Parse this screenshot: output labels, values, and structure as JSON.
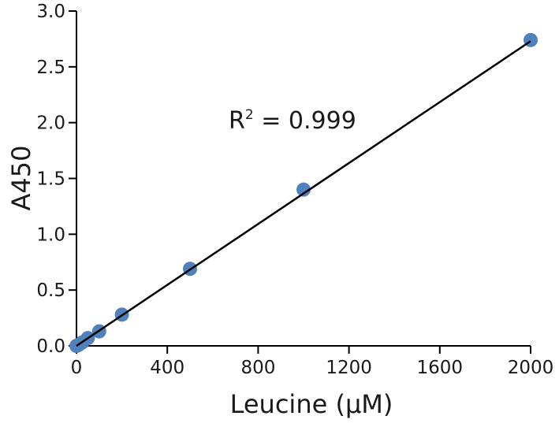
{
  "chart_data": {
    "type": "scatter",
    "xlabel": "Leucine (μM)",
    "ylabel": "A450",
    "xlim": [
      0,
      2000
    ],
    "ylim": [
      0,
      3.0
    ],
    "x_ticks": [
      "0",
      "400",
      "800",
      "1200",
      "1600",
      "2000"
    ],
    "y_ticks": [
      "0.0",
      "0.5",
      "1.0",
      "1.5",
      "2.0",
      "2.5",
      "3.0"
    ],
    "grid": false,
    "series": [
      {
        "points": [
          {
            "x": 0,
            "y": 0.0
          },
          {
            "x": 10,
            "y": 0.01
          },
          {
            "x": 25,
            "y": 0.03
          },
          {
            "x": 50,
            "y": 0.07
          },
          {
            "x": 100,
            "y": 0.13
          },
          {
            "x": 200,
            "y": 0.28
          },
          {
            "x": 500,
            "y": 0.69
          },
          {
            "x": 1000,
            "y": 1.4
          },
          {
            "x": 2000,
            "y": 2.74
          }
        ]
      }
    ],
    "fit_line": {
      "x": [
        0,
        2000
      ],
      "y": [
        0.0,
        2.73
      ]
    },
    "annotation": {
      "prefix": "R",
      "superscript": "2",
      "suffix": " = 0.999"
    },
    "marker_color": "#4f81bd",
    "line_color": "#000000"
  }
}
